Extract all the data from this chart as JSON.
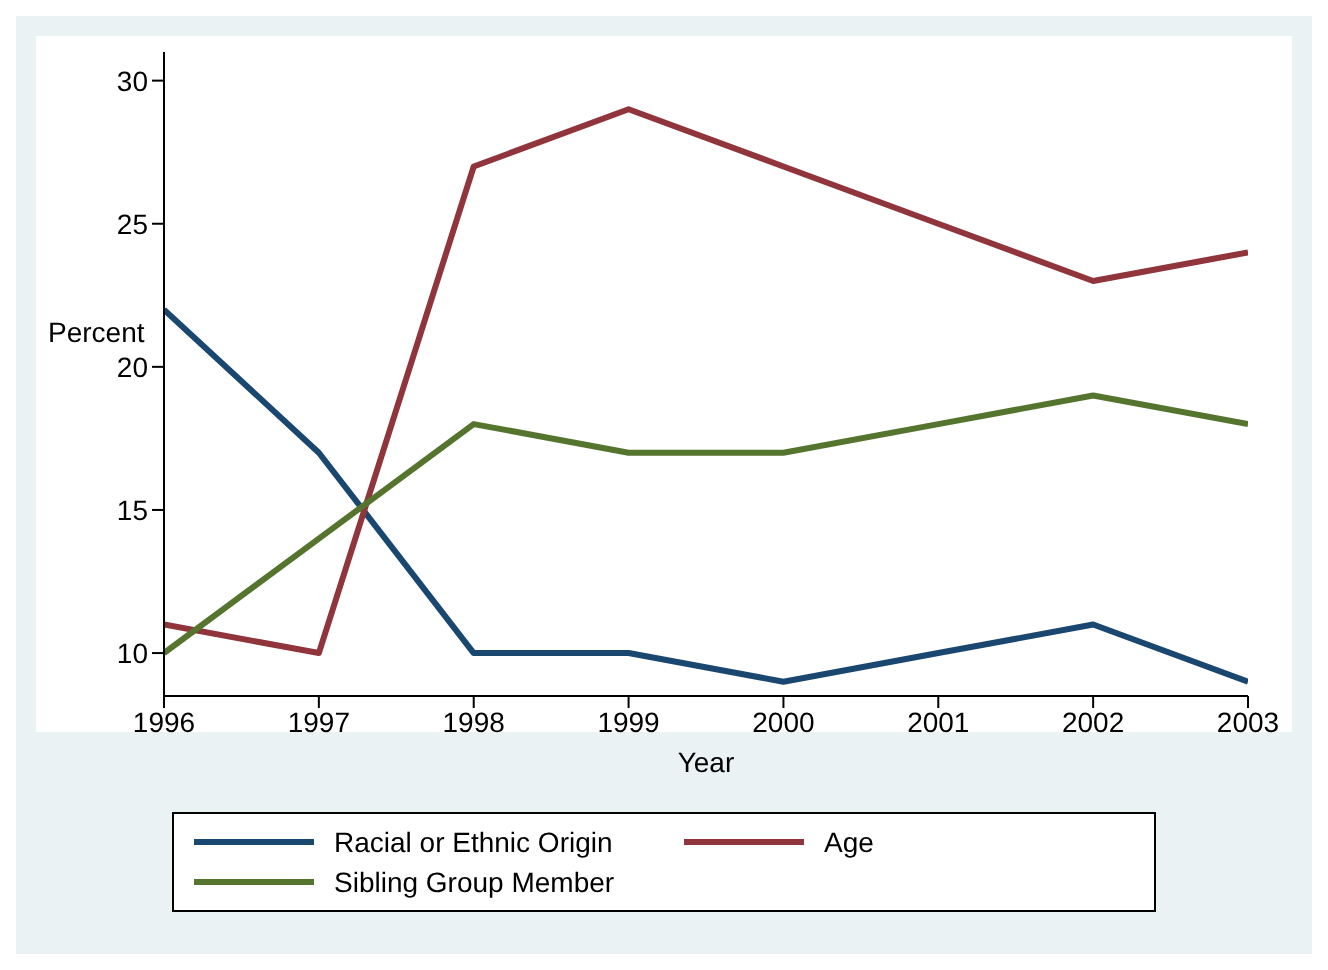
{
  "chart_data": {
    "type": "line",
    "xlabel": "Year",
    "ylabel": "Percent",
    "x": [
      1996,
      1997,
      1998,
      1999,
      2000,
      2001,
      2002,
      2003
    ],
    "series": [
      {
        "name": "Racial or Ethnic Origin",
        "color": "#1a476f",
        "values": [
          22,
          17,
          10,
          10,
          9,
          10,
          11,
          9
        ]
      },
      {
        "name": "Age",
        "color": "#90353b",
        "values": [
          11,
          10,
          27,
          29,
          27,
          25,
          23,
          24
        ]
      },
      {
        "name": "Sibling Group Member",
        "color": "#55752f",
        "values": [
          10,
          14,
          18,
          17,
          17,
          18,
          19,
          18
        ]
      }
    ],
    "xlim": [
      1996,
      2003
    ],
    "xticks": [
      1996,
      1997,
      1998,
      1999,
      2000,
      2001,
      2002,
      2003
    ],
    "ylim": [
      8.5,
      31
    ],
    "yticks": [
      10,
      15,
      20,
      25,
      30
    ],
    "grid": false,
    "legend": "bottom",
    "marker": "none",
    "line_style": "solid"
  }
}
